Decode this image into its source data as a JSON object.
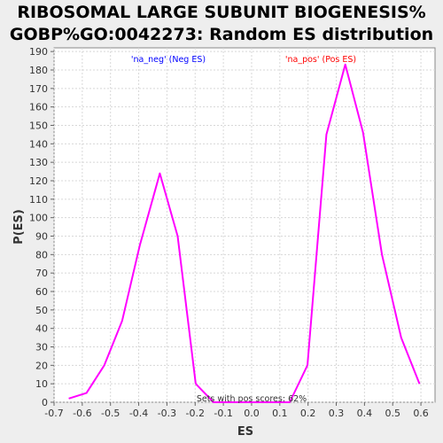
{
  "chart_data": {
    "type": "line",
    "title_line1": "RIBOSOMAL LARGE SUBUNIT BIOGENESIS%",
    "title_line2": "GOBP%GO:0042273: Random ES distribution",
    "xlabel": "ES",
    "ylabel": "P(ES)",
    "xlim": [
      -0.7,
      0.65
    ],
    "ylim": [
      0,
      192
    ],
    "xticks": [
      -0.7,
      -0.6,
      -0.5,
      -0.4,
      -0.3,
      -0.2,
      -0.1,
      0.0,
      0.1,
      0.2,
      0.3,
      0.4,
      0.5,
      0.6
    ],
    "xtick_labels": [
      "-0.7",
      "-0.6",
      "-0.5",
      "-0.4",
      "-0.3",
      "-0.2",
      "-0.1",
      "0.0",
      "0.1",
      "0.2",
      "0.3",
      "0.4",
      "0.5",
      "0.6"
    ],
    "yticks": [
      0,
      10,
      20,
      30,
      40,
      50,
      60,
      70,
      80,
      90,
      100,
      110,
      120,
      130,
      140,
      150,
      160,
      170,
      180,
      190
    ],
    "grid": true,
    "line_color": "#ff00ff",
    "series": [
      {
        "x": [
          -0.648,
          -0.585,
          -0.522,
          -0.459,
          -0.396,
          -0.325,
          -0.262,
          -0.198
        ],
        "y": [
          2,
          5,
          20,
          44,
          85,
          124,
          90,
          10
        ]
      },
      {
        "x": [
          -0.198,
          -0.135,
          0.135,
          0.198,
          0.265,
          0.332,
          0.395,
          0.462,
          0.53,
          0.595
        ],
        "y": [
          10,
          0,
          0,
          20,
          145,
          183,
          146,
          80,
          35,
          10
        ]
      }
    ],
    "annotations": {
      "neg_label": "'na_neg' (Neg ES)",
      "neg_color": "#0000ff",
      "pos_label": "'na_pos' (Pos ES)",
      "pos_color": "#ff0000",
      "footer": "Sets with pos scores: 62%"
    }
  }
}
